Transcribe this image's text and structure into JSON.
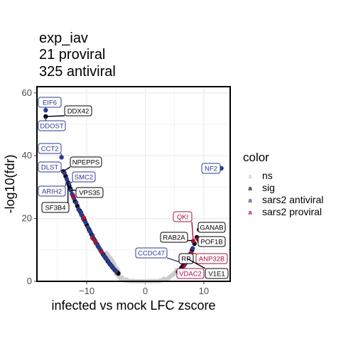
{
  "chart_data": {
    "type": "scatter",
    "title_lines": [
      "exp_iav",
      "21 proviral",
      "325 antiviral"
    ],
    "xlabel": "infected vs mock LFC zscore",
    "ylabel": "-log10(fdr)",
    "xlim": [
      -18.5,
      14.5
    ],
    "ylim": [
      0,
      62
    ],
    "x_ticks": [
      -10,
      0,
      10
    ],
    "x_tick_labels": [
      "−10",
      "0",
      "10"
    ],
    "y_ticks": [
      0,
      20,
      40,
      60
    ],
    "y_tick_labels": [
      "0",
      "20",
      "40",
      "60"
    ],
    "grid": true,
    "legend": {
      "title": "color",
      "position": "right",
      "entries": [
        {
          "key": "ns",
          "label": "ns",
          "color": "#cccccc"
        },
        {
          "key": "sig",
          "label": "sig",
          "color": "#000000"
        },
        {
          "key": "antiviral",
          "label": "sars2 antiviral",
          "color": "#2b3a8f"
        },
        {
          "key": "proviral",
          "label": "sars2 proviral",
          "color": "#a4133c"
        }
      ]
    },
    "series": [
      {
        "name": "ns",
        "points": [
          [
            -4.6,
            3.2
          ],
          [
            -4.8,
            4.0
          ],
          [
            -5.0,
            2.4
          ],
          [
            -5.2,
            5.0
          ],
          [
            -4.5,
            1.5
          ],
          [
            -4.2,
            0.8
          ],
          [
            -3.8,
            0.5
          ],
          [
            -3.5,
            0.3
          ],
          [
            -3.0,
            0.2
          ],
          [
            -2.5,
            0.1
          ],
          [
            -2.0,
            0.1
          ],
          [
            -1.5,
            0.05
          ],
          [
            -1.0,
            0.05
          ],
          [
            -0.5,
            0.05
          ],
          [
            0.0,
            0.05
          ],
          [
            0.5,
            0.05
          ],
          [
            1.0,
            0.05
          ],
          [
            1.5,
            0.1
          ],
          [
            2.0,
            0.1
          ],
          [
            2.5,
            0.2
          ],
          [
            3.0,
            0.4
          ],
          [
            3.5,
            0.6
          ],
          [
            4.0,
            1.0
          ],
          [
            4.5,
            1.8
          ],
          [
            5.0,
            2.6
          ],
          [
            5.4,
            3.6
          ],
          [
            -5.4,
            5.8
          ],
          [
            -5.6,
            6.4
          ],
          [
            -4.0,
            1.2
          ],
          [
            -3.2,
            0.6
          ],
          [
            3.2,
            0.8
          ],
          [
            4.2,
            1.4
          ],
          [
            4.8,
            2.2
          ],
          [
            5.2,
            3.0
          ],
          [
            -6.0,
            7.5
          ],
          [
            -5.8,
            7.0
          ],
          [
            -6.3,
            8.2
          ],
          [
            -6.6,
            9.0
          ]
        ]
      },
      {
        "name": "sig",
        "points": [
          [
            -17.0,
            52.5
          ],
          [
            -14.0,
            35.0
          ],
          [
            -13.6,
            33.5
          ],
          [
            -13.2,
            31.5
          ],
          [
            -12.8,
            29.5
          ],
          [
            -12.4,
            27.5
          ],
          [
            -12.0,
            25.5
          ],
          [
            -11.6,
            24.0
          ],
          [
            -11.2,
            22.5
          ],
          [
            -10.8,
            21.0
          ],
          [
            -10.4,
            19.5
          ],
          [
            -10.0,
            18.0
          ],
          [
            -9.6,
            16.5
          ],
          [
            -9.2,
            15.0
          ],
          [
            -8.8,
            13.5
          ],
          [
            -8.4,
            12.2
          ],
          [
            -8.0,
            11.0
          ],
          [
            -7.6,
            9.8
          ],
          [
            -7.2,
            8.6
          ],
          [
            -6.8,
            7.5
          ],
          [
            -6.4,
            6.4
          ],
          [
            -6.0,
            5.4
          ],
          [
            -5.6,
            4.5
          ],
          [
            -5.2,
            3.6
          ],
          [
            -4.8,
            2.9
          ],
          [
            -4.6,
            2.5
          ],
          [
            5.6,
            3.0
          ],
          [
            6.0,
            3.8
          ],
          [
            6.4,
            4.8
          ],
          [
            6.8,
            6.0
          ],
          [
            7.2,
            7.2
          ],
          [
            7.6,
            8.5
          ],
          [
            8.0,
            10.0
          ],
          [
            8.4,
            12.0
          ],
          [
            8.8,
            14.0
          ],
          [
            9.2,
            16.5
          ],
          [
            5.8,
            3.4
          ],
          [
            6.2,
            4.3
          ],
          [
            6.6,
            5.4
          ],
          [
            7.0,
            6.6
          ],
          [
            -7.0,
            8.0
          ],
          [
            -9.0,
            14.2
          ],
          [
            -11.0,
            21.8
          ],
          [
            -13.0,
            30.5
          ]
        ]
      },
      {
        "name": "sars2 antiviral",
        "points": [
          [
            -17.0,
            54.5
          ],
          [
            -14.3,
            39.5
          ],
          [
            -13.8,
            34.5
          ],
          [
            -13.4,
            32.5
          ],
          [
            -13.1,
            31.0
          ],
          [
            -12.7,
            29.0
          ],
          [
            -12.2,
            26.5
          ],
          [
            -11.8,
            25.0
          ],
          [
            -11.4,
            23.0
          ],
          [
            -11.0,
            22.0
          ],
          [
            -10.6,
            20.0
          ],
          [
            -10.2,
            18.8
          ],
          [
            -9.8,
            17.2
          ],
          [
            -9.4,
            15.8
          ],
          [
            -9.0,
            14.5
          ],
          [
            -8.6,
            13.0
          ],
          [
            -8.2,
            11.8
          ],
          [
            -7.8,
            10.4
          ],
          [
            -7.4,
            9.2
          ],
          [
            -7.0,
            8.0
          ],
          [
            -6.6,
            7.0
          ],
          [
            -6.2,
            5.9
          ],
          [
            -5.8,
            5.0
          ],
          [
            -5.4,
            4.0
          ],
          [
            -5.0,
            3.2
          ],
          [
            13.0,
            36.0
          ],
          [
            6.2,
            3.6
          ],
          [
            6.8,
            5.6
          ],
          [
            7.4,
            7.8
          ],
          [
            8.1,
            10.5
          ],
          [
            -12.5,
            27.8
          ],
          [
            -10.9,
            21.2
          ],
          [
            -9.5,
            16.0
          ],
          [
            -8.1,
            11.2
          ]
        ]
      },
      {
        "name": "sars2 proviral",
        "points": [
          [
            -9.0,
            13.8
          ],
          [
            -8.5,
            12.5
          ],
          [
            -10.5,
            20.2
          ],
          [
            -12.3,
            27.0
          ],
          [
            6.6,
            5.0
          ],
          [
            7.8,
            9.0
          ],
          [
            8.2,
            12.8
          ],
          [
            9.0,
            13.5
          ],
          [
            9.2,
            12.9
          ],
          [
            -7.5,
            9.5
          ]
        ]
      }
    ],
    "annotations": [
      {
        "text": "EIF6",
        "x": -17.0,
        "y": 54.5,
        "group": "antiviral"
      },
      {
        "text": "DDX42",
        "x": -17.0,
        "y": 52.5,
        "group": "sig"
      },
      {
        "text": "DDOST",
        "x": -17.0,
        "y": 52.5,
        "group": "antiviral"
      },
      {
        "text": "CCT2",
        "x": -14.3,
        "y": 39.5,
        "group": "antiviral"
      },
      {
        "text": "NPEPPS",
        "x": -14.0,
        "y": 35.0,
        "group": "sig"
      },
      {
        "text": "DLST",
        "x": -14.0,
        "y": 35.0,
        "group": "antiviral"
      },
      {
        "text": "SMC2",
        "x": -13.1,
        "y": 31.0,
        "group": "antiviral"
      },
      {
        "text": "ARIH2",
        "x": -13.4,
        "y": 32.5,
        "group": "antiviral"
      },
      {
        "text": "VPS35",
        "x": -12.7,
        "y": 29.0,
        "group": "sig"
      },
      {
        "text": "SF3B4",
        "x": -13.2,
        "y": 31.5,
        "group": "sig"
      },
      {
        "text": "NF2",
        "x": 13.0,
        "y": 36.0,
        "group": "antiviral"
      },
      {
        "text": "QKI",
        "x": 8.2,
        "y": 12.8,
        "group": "proviral"
      },
      {
        "text": "GANAB",
        "x": 9.2,
        "y": 16.5,
        "group": "sig"
      },
      {
        "text": "RAB2A",
        "x": 8.0,
        "y": 13.0,
        "group": "sig"
      },
      {
        "text": "POF1B",
        "x": 9.0,
        "y": 13.5,
        "group": "sig"
      },
      {
        "text": "CCDC47",
        "x": 6.8,
        "y": 5.6,
        "group": "antiviral"
      },
      {
        "text": "RP",
        "x": 6.4,
        "y": 4.8,
        "group": "sig"
      },
      {
        "text": "ANP32B",
        "x": 7.8,
        "y": 9.0,
        "group": "proviral"
      },
      {
        "text": "VDAC2",
        "x": 6.6,
        "y": 5.0,
        "group": "proviral"
      },
      {
        "text": "V1E1",
        "x": 7.2,
        "y": 7.2,
        "group": "sig"
      }
    ],
    "colors": {
      "ns": "#cccccc",
      "sig": "#000000",
      "antiviral": "#2b3a8f",
      "proviral": "#a4133c",
      "grid": "#ebebeb"
    }
  }
}
